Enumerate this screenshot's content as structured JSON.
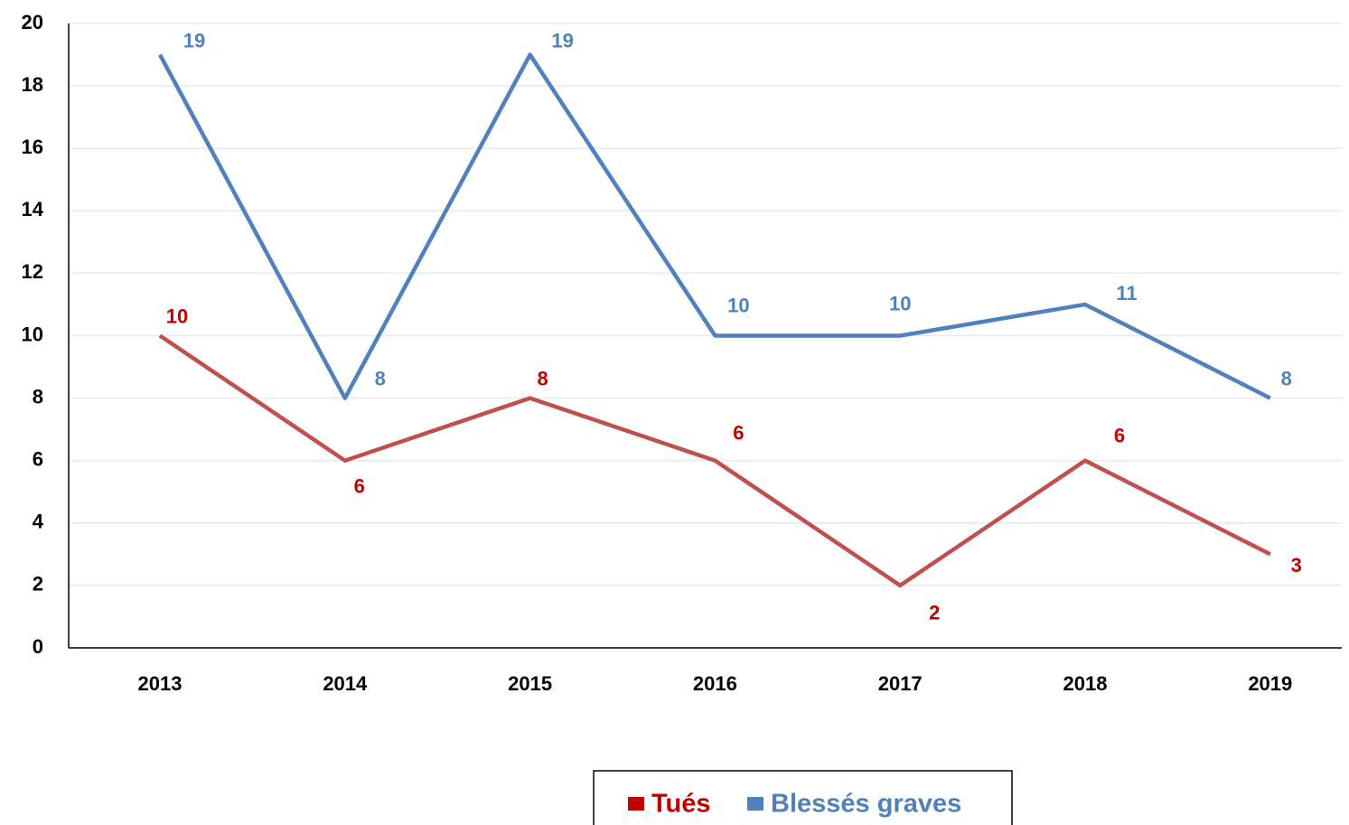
{
  "chart_data": {
    "type": "line",
    "categories": [
      "2013",
      "2014",
      "2015",
      "2016",
      "2017",
      "2018",
      "2019"
    ],
    "series": [
      {
        "name": "Tués",
        "color": "#c0504d",
        "values": [
          10,
          6,
          8,
          6,
          2,
          6,
          3
        ]
      },
      {
        "name": "Blessés graves",
        "color": "#4f81bd",
        "values": [
          19,
          8,
          19,
          10,
          10,
          11,
          8
        ]
      }
    ],
    "ylim": [
      0,
      20
    ],
    "yticks": [
      0,
      2,
      4,
      6,
      8,
      10,
      12,
      14,
      16,
      18,
      20
    ],
    "grid": true,
    "legend": "bottom"
  }
}
